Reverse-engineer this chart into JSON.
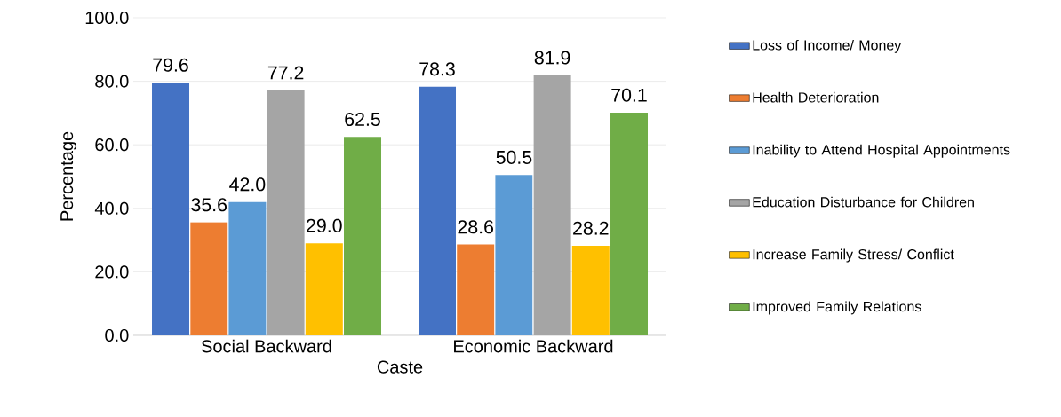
{
  "chart_data": {
    "type": "bar",
    "xlabel": "Caste",
    "ylabel": "Percentage",
    "categories": [
      "Social Backward",
      "Economic Backward"
    ],
    "series": [
      {
        "name": "Loss of Income/ Money",
        "color": "#4472c4",
        "values": [
          79.6,
          78.3
        ],
        "value_labels": [
          "79.6",
          "78.3"
        ]
      },
      {
        "name": "Health Deterioration",
        "color": "#ed7d31",
        "values": [
          35.6,
          28.6
        ],
        "value_labels": [
          "35.6",
          "28.6"
        ]
      },
      {
        "name": "Inability to Attend Hospital Appointments",
        "color": "#5b9bd5",
        "values": [
          42.0,
          50.5
        ],
        "value_labels": [
          "42.0",
          "50.5"
        ]
      },
      {
        "name": "Education Disturbance for Children",
        "color": "#a5a5a5",
        "values": [
          77.2,
          81.9
        ],
        "value_labels": [
          "77.2",
          "81.9"
        ]
      },
      {
        "name": "Increase Family Stress/ Conflict",
        "color": "#ffc000",
        "values": [
          29.0,
          28.2
        ],
        "value_labels": [
          "29.0",
          "28.2"
        ]
      },
      {
        "name": "Improved Family Relations",
        "color": "#70ad47",
        "values": [
          62.5,
          70.1
        ],
        "value_labels": [
          "62.5",
          "70.1"
        ]
      }
    ],
    "ylim": [
      0,
      100
    ],
    "yticks": [
      {
        "value": 0,
        "label": "0.0"
      },
      {
        "value": 20,
        "label": "20.0"
      },
      {
        "value": 40,
        "label": "40.0"
      },
      {
        "value": 60,
        "label": "60.0"
      },
      {
        "value": 80,
        "label": "80.0"
      },
      {
        "value": 100,
        "label": "100.0"
      }
    ],
    "grid": "y",
    "legend": "right"
  }
}
